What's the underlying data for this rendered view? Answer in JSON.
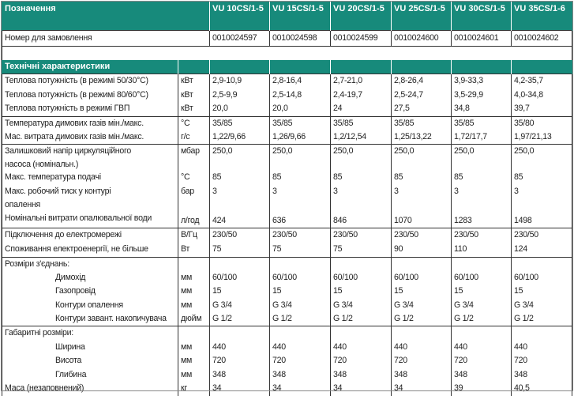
{
  "header": {
    "title": "Позначення",
    "models": [
      "VU 10CS/1-5",
      "VU 15CS/1-5",
      "VU 20CS/1-5",
      "VU 25CS/1-5",
      "VU 30CS/1-5",
      "VU 35CS/1-6"
    ]
  },
  "order": {
    "label": "Номер для замовлення",
    "values": [
      "0010024597",
      "0010024598",
      "0010024599",
      "0010024600",
      "0010024601",
      "0010024602"
    ]
  },
  "section_title": "Технічні характеристики",
  "groups": [
    {
      "lines": [
        {
          "label": "Теплова потужність (в режимі 50/30°C)",
          "unit": "кВт",
          "values": [
            "2,9-10,9",
            "2,8-16,4",
            "2,7-21,0",
            "2,8-26,4",
            "3,9-33,3",
            "4,2-35,7"
          ]
        },
        {
          "label": "Теплова потужність (в режимі 80/60°C)",
          "unit": "кВт",
          "values": [
            "2,5-9,9",
            "2,5-14,8",
            "2,4-19,7",
            "2,5-24,7",
            "3,5-29,9",
            "4,0-34,8"
          ]
        },
        {
          "label": "Теплова потужність в режимі ГВП",
          "unit": "кВт",
          "values": [
            "20,0",
            "20,0",
            "24",
            "27,5",
            "34,8",
            "39,7"
          ]
        }
      ]
    },
    {
      "lines": [
        {
          "label": "Температура димових газів мін./макс.",
          "unit": "°C",
          "values": [
            "35/85",
            "35/85",
            "35/85",
            "35/85",
            "35/85",
            "35/80"
          ]
        },
        {
          "label": "Мас. витрата димових газів мін./макс.",
          "unit": "г/с",
          "values": [
            "1,22/9,66",
            "1,26/9,66",
            "1,2/12,54",
            "1,25/13,22",
            "1,72/17,7",
            "1,97/21,13"
          ]
        }
      ]
    },
    {
      "lines": [
        {
          "label": "Залишковий напір циркуляційного",
          "label2": "насоса (номінальн.)",
          "unit": "мбар",
          "values": [
            "250,0",
            "250,0",
            "250,0",
            "250,0",
            "250,0",
            "250,0"
          ]
        },
        {
          "label": "Макс. температура подачі",
          "unit": "°C",
          "values": [
            "85",
            "85",
            "85",
            "85",
            "85",
            "85"
          ]
        },
        {
          "label": "Макс. робочий тиск у контурі",
          "label2": "опалення",
          "unit": "бар",
          "values": [
            "3",
            "3",
            "3",
            "3",
            "3",
            "3"
          ]
        },
        {
          "label": "Номінальні витрати опалювальної води",
          "unit": "л/год",
          "values": [
            "424",
            "636",
            "846",
            "1070",
            "1283",
            "1498"
          ]
        }
      ]
    },
    {
      "lines": [
        {
          "label": "Підключення до електромережі",
          "unit": "В/Гц",
          "values": [
            "230/50",
            "230/50",
            "230/50",
            "230/50",
            "230/50",
            "230/50"
          ]
        },
        {
          "label": "Споживання електроенергії, не більше",
          "unit": "Вт",
          "values": [
            "75",
            "75",
            "75",
            "90",
            "110",
            "124"
          ]
        }
      ]
    },
    {
      "lines": [
        {
          "label": "Розміри з'єднань:",
          "unit": "",
          "values": [
            "",
            "",
            "",
            "",
            "",
            ""
          ]
        },
        {
          "label": "Димохід",
          "indent": true,
          "unit": "мм",
          "values": [
            "60/100",
            "60/100",
            "60/100",
            "60/100",
            "60/100",
            "60/100"
          ]
        },
        {
          "label": "Газопровід",
          "indent": true,
          "unit": "мм",
          "values": [
            "15",
            "15",
            "15",
            "15",
            "15",
            "15"
          ]
        },
        {
          "label": "Контури опалення",
          "indent": true,
          "unit": "мм",
          "values": [
            "G 3/4",
            "G 3/4",
            "G 3/4",
            "G 3/4",
            "G 3/4",
            "G 3/4"
          ]
        },
        {
          "label": "Контури завант. накопичувача",
          "indent": true,
          "unit": "дюйм",
          "values": [
            "G 1/2",
            "G 1/2",
            "G 1/2",
            "G 1/2",
            "G 1/2",
            "G 1/2"
          ]
        }
      ]
    },
    {
      "lines": [
        {
          "label": "Габаритні розміри:",
          "unit": "",
          "values": [
            "",
            "",
            "",
            "",
            "",
            ""
          ]
        },
        {
          "label": "Ширина",
          "indent": true,
          "unit": "мм",
          "values": [
            "440",
            "440",
            "440",
            "440",
            "440",
            "440"
          ]
        },
        {
          "label": "Висота",
          "indent": true,
          "unit": "мм",
          "values": [
            "720",
            "720",
            "720",
            "720",
            "720",
            "720"
          ]
        },
        {
          "label": "Глибина",
          "indent": true,
          "unit": "мм",
          "values": [
            "348",
            "348",
            "348",
            "348",
            "348",
            "348"
          ]
        },
        {
          "label": "Маса (незаповнений)",
          "unit": "кг",
          "values": [
            "34",
            "34",
            "34",
            "34",
            "39",
            "40,5"
          ]
        }
      ]
    }
  ]
}
